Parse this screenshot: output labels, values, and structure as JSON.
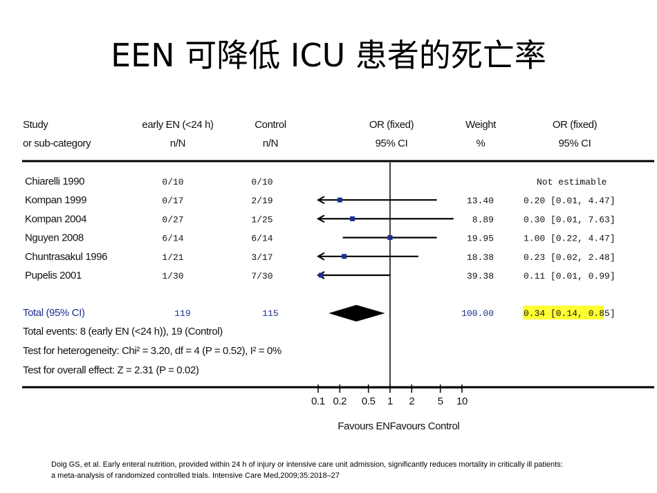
{
  "title": "EEN 可降低 ICU 患者的死亡率",
  "reference": {
    "line1": "Doig GS, et al.  Early enteral nutrition, provided within 24 h of injury or intensive care unit admission, significantly reduces mortality in critically ill patients:",
    "line2": "a meta-analysis of randomized controlled trials.  Intensive Care Med,2009;35:2018–27"
  },
  "chart_data": {
    "type": "forest",
    "headers": {
      "study": [
        "Study",
        "or sub-category"
      ],
      "treatment": [
        "early EN (<24 h)",
        "n/N"
      ],
      "control": [
        "Control",
        "n/N"
      ],
      "effect": [
        "OR (fixed)",
        "95% CI"
      ],
      "weight": [
        "Weight",
        "%"
      ],
      "or": [
        "OR (fixed)",
        "95% CI"
      ]
    },
    "studies": [
      {
        "name": "Chiarelli 1990",
        "treatment": "0/10",
        "control": "0/10",
        "weight": "",
        "or_text": "Not estimable",
        "or": null,
        "lo": null,
        "hi": null
      },
      {
        "name": "Kompan 1999",
        "treatment": "0/17",
        "control": "2/19",
        "weight": "13.40",
        "or_text": "0.20 [0.01, 4.47]",
        "or": 0.2,
        "lo": 0.01,
        "hi": 4.47
      },
      {
        "name": "Kompan 2004",
        "treatment": "0/27",
        "control": "1/25",
        "weight": "8.89",
        "or_text": "0.30 [0.01, 7.63]",
        "or": 0.3,
        "lo": 0.01,
        "hi": 7.63
      },
      {
        "name": "Nguyen 2008",
        "treatment": "6/14",
        "control": "6/14",
        "weight": "19.95",
        "or_text": "1.00 [0.22, 4.47]",
        "or": 1.0,
        "lo": 0.22,
        "hi": 4.47
      },
      {
        "name": "Chuntrasakul 1996",
        "treatment": "1/21",
        "control": "3/17",
        "weight": "18.38",
        "or_text": "0.23 [0.02, 2.48]",
        "or": 0.23,
        "lo": 0.02,
        "hi": 2.48
      },
      {
        "name": "Pupelis 2001",
        "treatment": "1/30",
        "control": "7/30",
        "weight": "39.38",
        "or_text": "0.11 [0.01, 0.99]",
        "or": 0.11,
        "lo": 0.01,
        "hi": 0.99
      }
    ],
    "total": {
      "name": "Total (95% CI)",
      "treatment": "119",
      "control": "115",
      "weight": "100.00",
      "or_text": "0.34 [0.14, 0.85]",
      "or": 0.34,
      "lo": 0.14,
      "hi": 0.85,
      "highlight_color": "#ffff33"
    },
    "notes": [
      "Total events: 8 (early EN (<24 h)), 19 (Control)",
      "Test for heterogeneity: Chi² = 3.20, df = 4 (P = 0.52), I² = 0%",
      "Test for overall effect: Z = 2.31 (P = 0.02)"
    ],
    "x_axis": {
      "scale": "log",
      "ticks": [
        0.1,
        0.2,
        0.5,
        1,
        2,
        5,
        10
      ],
      "tick_labels": [
        "0.1",
        "0.2",
        "0.5",
        "1",
        "2",
        "5",
        "10"
      ],
      "left_label": "Favours EN",
      "right_label": "Favours Control"
    },
    "colors": {
      "marker": "#1e2f8e",
      "total_text": "#1e2f8e",
      "diamond": "#000000"
    }
  }
}
